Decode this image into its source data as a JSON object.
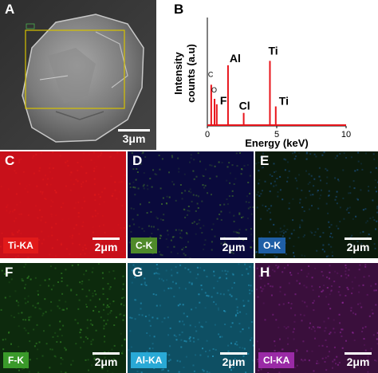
{
  "panelA": {
    "letter": "A",
    "scale": "3μm"
  },
  "panelB": {
    "letter": "B"
  },
  "chart_data": {
    "type": "line",
    "xlabel": "Energy (keV)",
    "ylabel": "Intensity counts (a.u)",
    "xlim": [
      0,
      10
    ],
    "x_ticks": [
      "0",
      "5",
      "10"
    ],
    "ylim": [
      0,
      1
    ],
    "series_color": "#e8141b",
    "peaks": [
      {
        "label": "C",
        "x": 0.28,
        "y": 0.38
      },
      {
        "label": "O",
        "x": 0.52,
        "y": 0.25
      },
      {
        "label": "F",
        "x": 0.68,
        "y": 0.2
      },
      {
        "label": "Al",
        "x": 1.49,
        "y": 0.56
      },
      {
        "label": "Cl",
        "x": 2.62,
        "y": 0.12
      },
      {
        "label": "Ti",
        "x": 4.51,
        "y": 0.6
      },
      {
        "label": "Ti",
        "x": 4.93,
        "y": 0.18
      }
    ]
  },
  "maps": [
    {
      "letter": "C",
      "tag": "Ti-KA",
      "scale": "2μm",
      "bg": "#c8101a",
      "tag_bg": "#e11a1a",
      "letter_color": "#ffffff"
    },
    {
      "letter": "D",
      "tag": "C-K",
      "scale": "2μm",
      "bg": "#0a0a3c",
      "tag_bg": "#4f8a2a",
      "letter_color": "#ffffff"
    },
    {
      "letter": "E",
      "tag": "O-K",
      "scale": "2μm",
      "bg": "#0b1a0b",
      "tag_bg": "#1f5fa6",
      "letter_color": "#ffffff"
    },
    {
      "letter": "F",
      "tag": "F-K",
      "scale": "2μm",
      "bg": "#0d2a0d",
      "tag_bg": "#3a9a2a",
      "letter_color": "#ffffff"
    },
    {
      "letter": "G",
      "tag": "Al-KA",
      "scale": "2μm",
      "bg": "#0e4f63",
      "tag_bg": "#29a9d6",
      "letter_color": "#ffffff"
    },
    {
      "letter": "H",
      "tag": "Cl-KA",
      "scale": "2μm",
      "bg": "#3a0f3c",
      "tag_bg": "#9a2aa6",
      "letter_color": "#ffffff"
    }
  ]
}
